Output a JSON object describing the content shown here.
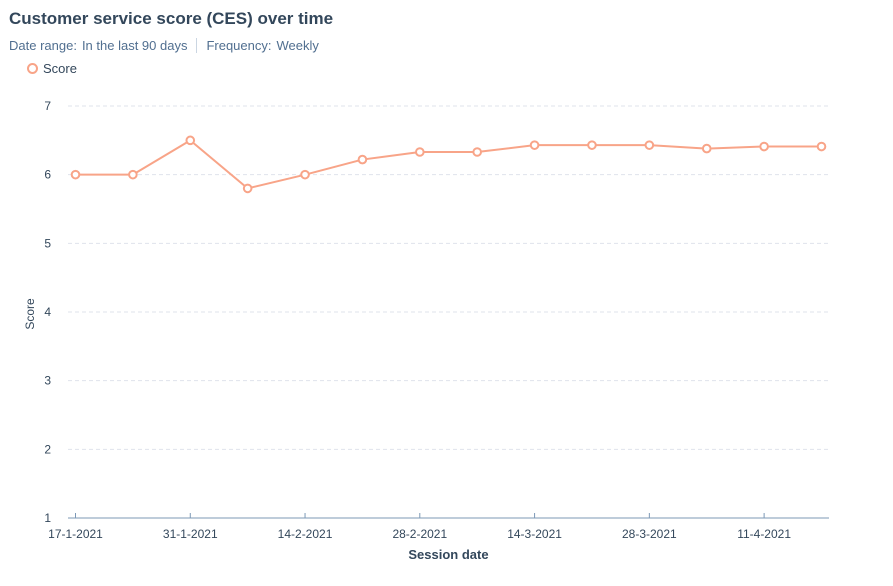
{
  "header": {
    "title": "Customer service score (CES) over time",
    "date_range_label": "Date range:",
    "date_range_value": "In the last 90 days",
    "frequency_label": "Frequency:",
    "frequency_value": "Weekly"
  },
  "colors": {
    "series": "#f8a488",
    "axis": "#7c98b6",
    "grid": "#dfe3eb",
    "text": "#33475b"
  },
  "chart_data": {
    "type": "line",
    "title": "Customer service score (CES) over time",
    "xlabel": "Session date",
    "ylabel": "Score",
    "ylim": [
      1,
      7
    ],
    "yticks": [
      1,
      2,
      3,
      4,
      5,
      6,
      7
    ],
    "grid": "horizontal dashed",
    "legend_placement": "top-left",
    "x": [
      "17-1-2021",
      "24-1-2021",
      "31-1-2021",
      "7-2-2021",
      "14-2-2021",
      "21-2-2021",
      "28-2-2021",
      "7-3-2021",
      "14-3-2021",
      "21-3-2021",
      "28-3-2021",
      "4-4-2021",
      "11-4-2021",
      "18-4-2021"
    ],
    "xtick_labels": [
      "17-1-2021",
      "31-1-2021",
      "14-2-2021",
      "28-2-2021",
      "14-3-2021",
      "28-3-2021",
      "11-4-2021"
    ],
    "series": [
      {
        "name": "Score",
        "values": [
          6.0,
          6.0,
          6.5,
          5.8,
          6.0,
          6.22,
          6.33,
          6.33,
          6.43,
          6.43,
          6.43,
          6.38,
          6.41,
          6.41
        ]
      }
    ]
  }
}
